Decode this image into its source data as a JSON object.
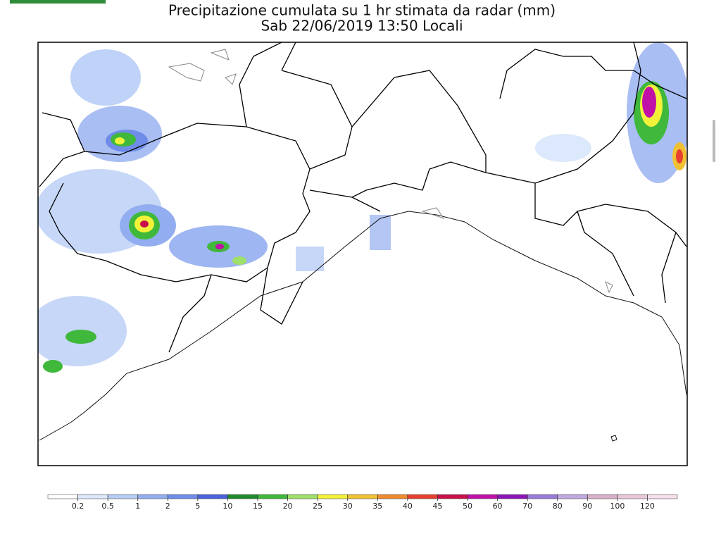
{
  "header": {
    "title": "Precipitazione cumulata su 1 hr stimata da radar (mm)",
    "subtitle": "Sab 22/06/2019 13:50 Locali"
  },
  "legend": {
    "ticks": [
      0.2,
      0.5,
      1,
      2,
      5,
      10,
      15,
      20,
      25,
      30,
      35,
      40,
      45,
      50,
      60,
      70,
      80,
      90,
      100,
      120
    ],
    "colors": [
      "#ffffff",
      "#dce8fb",
      "#b8cdf6",
      "#93aef0",
      "#6f8de8",
      "#4b63dc",
      "#1e8c2a",
      "#3fb83b",
      "#9ee06a",
      "#f2f23a",
      "#f0c233",
      "#ef8b2d",
      "#e8402e",
      "#c8104a",
      "#c010a8",
      "#8a14b8",
      "#9a7ad8",
      "#c0a8e0",
      "#d8b0c8",
      "#e8c8d8",
      "#f6e0ec"
    ]
  }
}
